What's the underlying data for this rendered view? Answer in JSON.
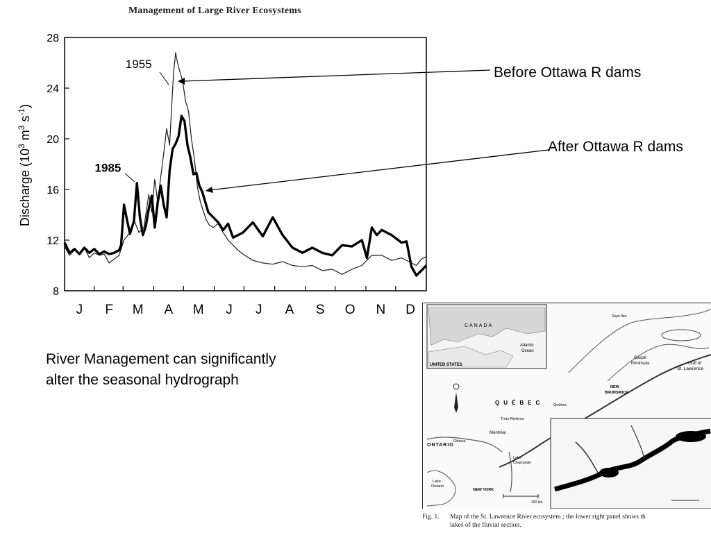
{
  "page": {
    "book_header": "Management of Large River Ecosystems",
    "callouts": {
      "before": "Before Ottawa R dams",
      "after": "After Ottawa R dams"
    },
    "caption_lines": [
      "River Management can significantly",
      "alter the seasonal hydrograph"
    ],
    "map": {
      "labels": {
        "canada": "CANADA",
        "quebec": "QUÉBEC",
        "ontario": "ONTARIO",
        "united_states": "UNITED STATES",
        "atlantic": "Atlantic",
        "ocean": "Ocean",
        "new_york": "NEW YORK",
        "new_brunswick": "NEW",
        "new_brunswick2": "BRUNSWICK",
        "gaspe": "Gaspé",
        "peninsula": "Peninsula",
        "gulf": "Gulf of",
        "st_lawrence": "St. Lawrence",
        "montreal": "Montréal",
        "quebec_city": "Québec",
        "trois_rivieres": "Trois-Rivières",
        "ottawa": "Ottawa",
        "sept_iles": "Sept-Îles",
        "lake_ontario": "Lake",
        "lake_ontario2": "Ontario",
        "lake_champlain": "Lake",
        "lake_champlain2": "Champlain",
        "scale": "200 km"
      },
      "caption_num": "Fig. 1.",
      "caption_lines": [
        "Map of the St. Lawrence River ecosystem ; the lower right panel shows th",
        "lakes of the fluvial section."
      ]
    }
  },
  "chart_data": {
    "type": "line",
    "title": "",
    "xlabel": "",
    "ylabel": "Discharge (10³ m³ s⁻¹)",
    "ylabel_parts": {
      "a": "Discharge (10",
      "b": "3",
      "c": " m",
      "d": "3",
      "e": " s",
      "f": "-1",
      "g": ")"
    },
    "x_range": [
      0,
      365
    ],
    "ylim": [
      8,
      28
    ],
    "yticks": [
      8,
      12,
      16,
      20,
      24,
      28
    ],
    "xticks": [
      {
        "label": "J",
        "day": 15
      },
      {
        "label": "F",
        "day": 45
      },
      {
        "label": "M",
        "day": 74
      },
      {
        "label": "A",
        "day": 105
      },
      {
        "label": "M",
        "day": 135
      },
      {
        "label": "J",
        "day": 166
      },
      {
        "label": "J",
        "day": 196
      },
      {
        "label": "A",
        "day": 227
      },
      {
        "label": "S",
        "day": 258
      },
      {
        "label": "O",
        "day": 288
      },
      {
        "label": "N",
        "day": 319
      },
      {
        "label": "D",
        "day": 349
      }
    ],
    "grid": false,
    "series": [
      {
        "name": "1955",
        "color": "#1a1a1a",
        "x": [
          0,
          5,
          10,
          15,
          20,
          25,
          30,
          35,
          40,
          45,
          50,
          55,
          60,
          65,
          70,
          75,
          80,
          85,
          88,
          91,
          94,
          97,
          100,
          103,
          106,
          108,
          110,
          112,
          114,
          116,
          119,
          122,
          125,
          128,
          131,
          134,
          137,
          140,
          143,
          146,
          150,
          155,
          160,
          165,
          170,
          175,
          180,
          190,
          200,
          210,
          220,
          230,
          240,
          250,
          260,
          270,
          280,
          290,
          300,
          310,
          320,
          330,
          340,
          350,
          355,
          360,
          365
        ],
        "values": [
          11.5,
          10.8,
          11.2,
          11.0,
          11.4,
          10.6,
          11.0,
          10.8,
          10.9,
          10.2,
          10.5,
          10.8,
          12.0,
          12.5,
          13.6,
          12.6,
          13.0,
          15.6,
          14.2,
          16.8,
          15.0,
          17.0,
          18.8,
          20.8,
          19.5,
          22.5,
          25.2,
          26.8,
          26.0,
          25.4,
          24.6,
          23.0,
          22.2,
          20.0,
          18.4,
          16.2,
          15.0,
          14.3,
          13.6,
          13.2,
          13.0,
          13.3,
          12.6,
          12.0,
          11.6,
          11.2,
          10.9,
          10.4,
          10.2,
          10.1,
          10.3,
          10.0,
          9.9,
          10.0,
          9.6,
          9.7,
          9.3,
          9.7,
          10.0,
          10.8,
          10.8,
          10.4,
          10.6,
          10.2,
          10.0,
          10.5,
          10.7
        ]
      },
      {
        "name": "1985",
        "color": "#000000",
        "x": [
          0,
          5,
          10,
          15,
          20,
          25,
          30,
          35,
          40,
          45,
          50,
          55,
          57,
          60,
          63,
          66,
          70,
          73,
          76,
          79,
          82,
          85,
          88,
          91,
          94,
          97,
          100,
          103,
          106,
          109,
          112,
          115,
          118,
          121,
          124,
          127,
          130,
          133,
          136,
          139,
          142,
          145,
          150,
          155,
          160,
          165,
          170,
          180,
          190,
          200,
          210,
          220,
          230,
          240,
          250,
          260,
          270,
          280,
          290,
          300,
          305,
          310,
          315,
          320,
          330,
          340,
          345,
          350,
          355,
          360,
          365
        ],
        "values": [
          11.8,
          11.0,
          11.3,
          10.9,
          11.4,
          11.0,
          11.3,
          10.9,
          11.1,
          10.9,
          11.0,
          11.2,
          11.6,
          14.8,
          13.6,
          12.5,
          13.5,
          16.5,
          13.8,
          12.4,
          13.1,
          14.5,
          15.5,
          13.0,
          15.0,
          16.3,
          14.8,
          13.8,
          17.5,
          19.2,
          19.6,
          20.2,
          21.8,
          21.4,
          19.5,
          18.5,
          17.2,
          17.3,
          16.3,
          15.8,
          15.0,
          14.2,
          13.8,
          13.4,
          12.8,
          13.3,
          12.2,
          12.6,
          13.4,
          12.3,
          13.8,
          12.4,
          11.4,
          11.0,
          11.4,
          11.0,
          10.8,
          11.6,
          11.5,
          12.0,
          10.6,
          13.0,
          12.4,
          12.8,
          12.4,
          11.8,
          11.9,
          9.9,
          9.2,
          9.6,
          10.0
        ]
      }
    ],
    "annotations": [
      {
        "text": "1955",
        "x": 88,
        "y": 25.6
      },
      {
        "text": "1985",
        "x": 57,
        "y": 17.4
      }
    ]
  }
}
